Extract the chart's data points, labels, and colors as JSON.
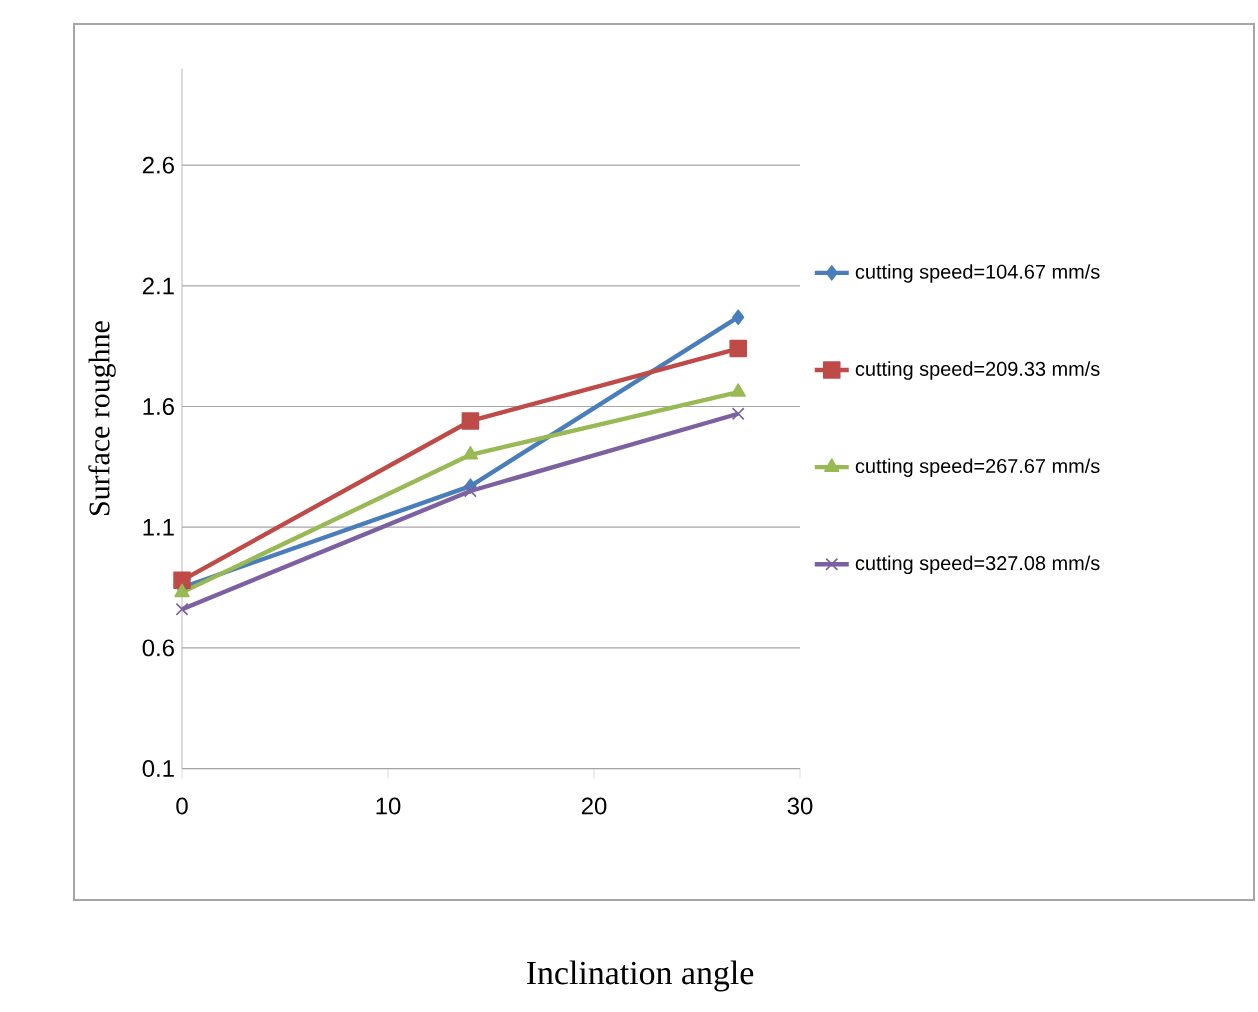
{
  "chart_data": {
    "type": "line",
    "xlabel": "Inclination angle",
    "ylabel": "Surface roughne",
    "x": [
      0,
      14,
      27
    ],
    "xlim": [
      0,
      30
    ],
    "xticks": [
      0,
      10,
      20,
      30
    ],
    "ylim": [
      0.1,
      3.0
    ],
    "yticks": [
      0.1,
      0.6,
      1.1,
      1.6,
      2.1,
      2.6
    ],
    "grid": "y",
    "legend": "right",
    "series": [
      {
        "name": "cutting speed=104.67 mm/s",
        "color": "#4a7ebb",
        "marker": "diamond",
        "values": [
          0.85,
          1.27,
          1.97
        ]
      },
      {
        "name": "cutting speed=209.33 mm/s",
        "color": "#be4b48",
        "marker": "square",
        "values": [
          0.88,
          1.54,
          1.84
        ]
      },
      {
        "name": "cutting speed=267.67 mm/s",
        "color": "#98b954",
        "marker": "triangle",
        "values": [
          0.83,
          1.4,
          1.66
        ]
      },
      {
        "name": "cutting speed=327.08 mm/s",
        "color": "#7d60a0",
        "marker": "cross",
        "values": [
          0.76,
          1.25,
          1.57
        ]
      }
    ]
  }
}
